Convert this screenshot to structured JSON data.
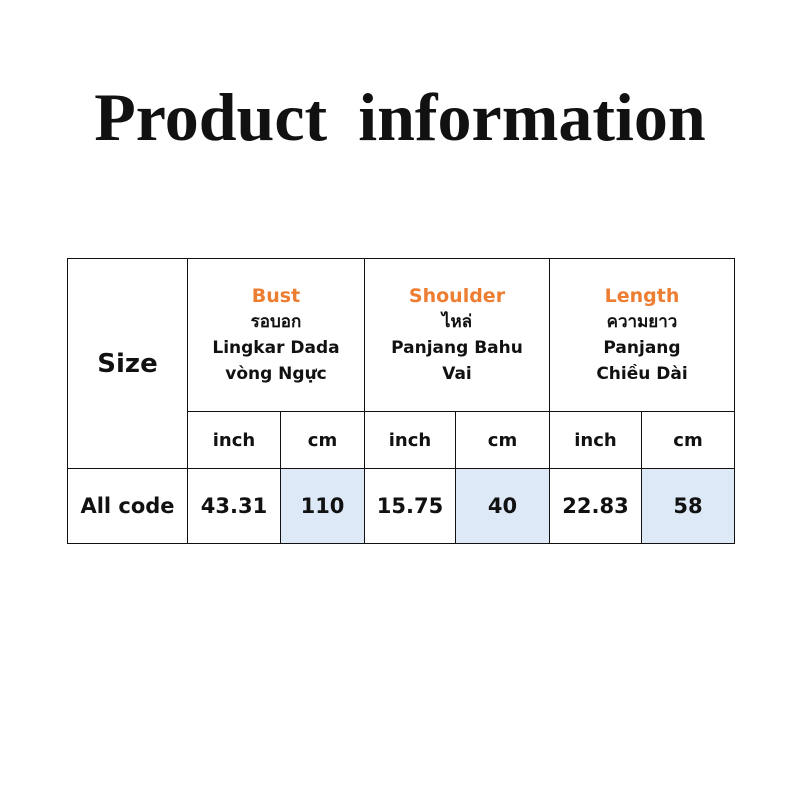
{
  "title": "Product  information",
  "table": {
    "size_label": "Size",
    "columns": [
      {
        "name": "Bust",
        "thai": "รอบอก",
        "indonesian": "Lingkar Dada",
        "vietnamese": "vòng Ngực"
      },
      {
        "name": "Shoulder",
        "thai": "ไหล่",
        "indonesian": "Panjang Bahu",
        "vietnamese": "Vai"
      },
      {
        "name": "Length",
        "thai": "ความยาว",
        "indonesian": "Panjang",
        "vietnamese": "Chiều Dài"
      }
    ],
    "units": [
      "inch",
      "cm",
      "inch",
      "cm",
      "inch",
      "cm"
    ],
    "rows": [
      {
        "label": "All code",
        "values": [
          "43.31",
          "110",
          "15.75",
          "40",
          "22.83",
          "58"
        ]
      }
    ]
  },
  "colors": {
    "header_accent": "#ed7d31",
    "cm_highlight": "#dde9f7"
  }
}
